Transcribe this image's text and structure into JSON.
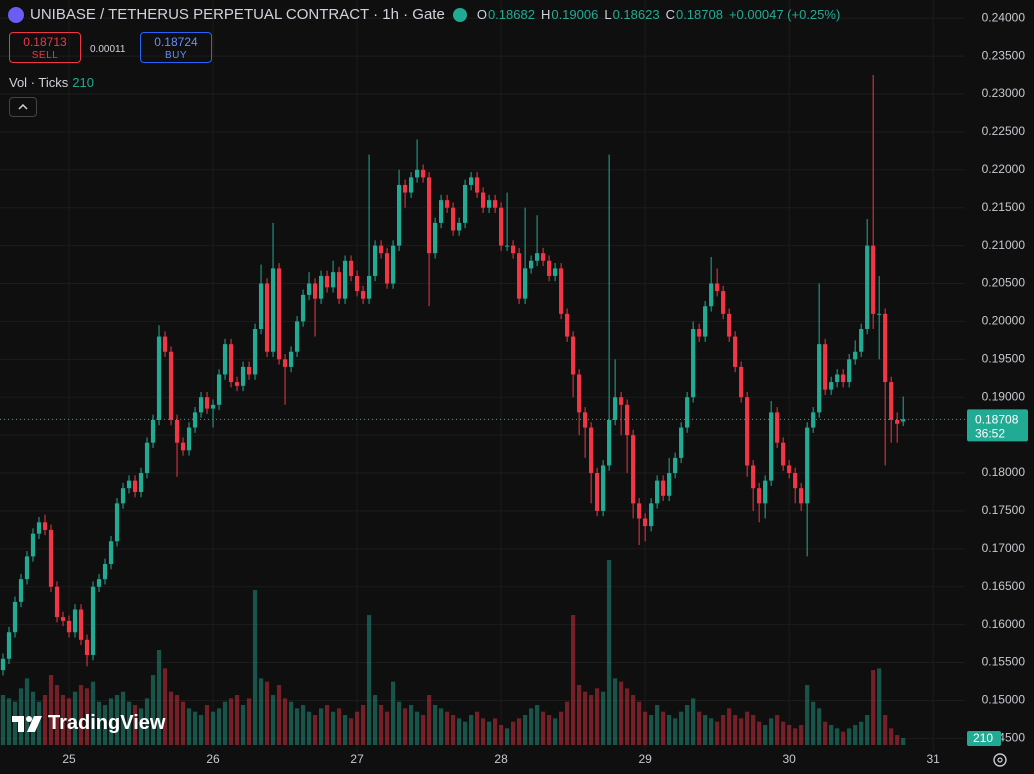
{
  "chart_data": {
    "type": "candlestick",
    "title": "UNIBASE / TETHERUS PERPETUAL CONTRACT · 1h · Gate",
    "ohlc": [
      {
        "label": "O",
        "value": 0.18682
      },
      {
        "label": "H",
        "value": 0.19006
      },
      {
        "label": "L",
        "value": 0.18623
      },
      {
        "label": "C",
        "value": 0.18708
      }
    ],
    "change": "+0.00047 (+0.25%)",
    "sell": {
      "price": 0.18713,
      "label": "SELL"
    },
    "spread": 0.00011,
    "buy": {
      "price": 0.18724,
      "label": "BUY"
    },
    "volume_label": "Vol · Ticks",
    "last_price": 0.18708,
    "countdown": "36:52",
    "logo": "TradingView",
    "up_color": "#22ab94",
    "down_color": "#f23645",
    "ylim": [
      0.1432,
      0.2424
    ],
    "yticks": [
      {
        "value": 0.145,
        "label": "0.14500"
      },
      {
        "value": 0.15,
        "label": "0.15000"
      },
      {
        "value": 0.155,
        "label": "0.15500"
      },
      {
        "value": 0.16,
        "label": "0.16000"
      },
      {
        "value": 0.165,
        "label": "0.16500"
      },
      {
        "value": 0.17,
        "label": "0.17000"
      },
      {
        "value": 0.175,
        "label": "0.17500"
      },
      {
        "value": 0.18,
        "label": "0.18000"
      },
      {
        "value": 0.185,
        "label": "0.18500"
      },
      {
        "value": 0.19,
        "label": "0.19000"
      },
      {
        "value": 0.195,
        "label": "0.19500"
      },
      {
        "value": 0.2,
        "label": "0.20000"
      },
      {
        "value": 0.205,
        "label": "0.20500"
      },
      {
        "value": 0.21,
        "label": "0.21000"
      },
      {
        "value": 0.215,
        "label": "0.21500"
      },
      {
        "value": 0.22,
        "label": "0.22000"
      },
      {
        "value": 0.225,
        "label": "0.22500"
      },
      {
        "value": 0.23,
        "label": "0.23000"
      },
      {
        "value": 0.235,
        "label": "0.23500"
      },
      {
        "value": 0.24,
        "label": "0.24000"
      }
    ],
    "xlim": [
      -0.5,
      160.3
    ],
    "xticks": [
      {
        "value": 11,
        "label": "25"
      },
      {
        "value": 35,
        "label": "26"
      },
      {
        "value": 59,
        "label": "27"
      },
      {
        "value": 83,
        "label": "28"
      },
      {
        "value": 107,
        "label": "29"
      },
      {
        "value": 131,
        "label": "30"
      },
      {
        "value": 155,
        "label": "31"
      }
    ],
    "volume_ylim": [
      0,
      22000
    ],
    "grid": true,
    "candles": [
      [
        0.154,
        0.1562,
        0.1533,
        0.1555
      ],
      [
        0.1555,
        0.1597,
        0.1548,
        0.159
      ],
      [
        0.159,
        0.1637,
        0.1583,
        0.163
      ],
      [
        0.163,
        0.1667,
        0.1623,
        0.166
      ],
      [
        0.166,
        0.1697,
        0.1653,
        0.169
      ],
      [
        0.169,
        0.1727,
        0.1683,
        0.172
      ],
      [
        0.172,
        0.1742,
        0.1713,
        0.1735
      ],
      [
        0.1735,
        0.1745,
        0.1718,
        0.1725
      ],
      [
        0.1725,
        0.1732,
        0.1643,
        0.165
      ],
      [
        0.165,
        0.1657,
        0.1603,
        0.161
      ],
      [
        0.161,
        0.1617,
        0.1598,
        0.1605
      ],
      [
        0.1605,
        0.1612,
        0.1583,
        0.159
      ],
      [
        0.159,
        0.1627,
        0.1583,
        0.162
      ],
      [
        0.162,
        0.1627,
        0.1573,
        0.158
      ],
      [
        0.158,
        0.1587,
        0.1545,
        0.156
      ],
      [
        0.156,
        0.1657,
        0.1553,
        0.165
      ],
      [
        0.165,
        0.1667,
        0.1643,
        0.166
      ],
      [
        0.166,
        0.1687,
        0.1653,
        0.168
      ],
      [
        0.168,
        0.1717,
        0.1673,
        0.171
      ],
      [
        0.171,
        0.1767,
        0.1703,
        0.176
      ],
      [
        0.176,
        0.1787,
        0.1753,
        0.178
      ],
      [
        0.178,
        0.1797,
        0.1773,
        0.179
      ],
      [
        0.179,
        0.1797,
        0.1768,
        0.1775
      ],
      [
        0.1775,
        0.1807,
        0.1768,
        0.18
      ],
      [
        0.18,
        0.1847,
        0.1793,
        0.184
      ],
      [
        0.184,
        0.1877,
        0.1833,
        0.187
      ],
      [
        0.187,
        0.1995,
        0.1863,
        0.198
      ],
      [
        0.198,
        0.1987,
        0.1953,
        0.196
      ],
      [
        0.196,
        0.1967,
        0.1863,
        0.187
      ],
      [
        0.187,
        0.1877,
        0.1795,
        0.184
      ],
      [
        0.184,
        0.1847,
        0.1823,
        0.183
      ],
      [
        0.183,
        0.1867,
        0.1823,
        0.186
      ],
      [
        0.186,
        0.1887,
        0.1853,
        0.188
      ],
      [
        0.188,
        0.1907,
        0.1873,
        0.19
      ],
      [
        0.19,
        0.1907,
        0.1878,
        0.1885
      ],
      [
        0.1885,
        0.1897,
        0.186,
        0.189
      ],
      [
        0.189,
        0.1937,
        0.1883,
        0.193
      ],
      [
        0.193,
        0.1977,
        0.1923,
        0.197
      ],
      [
        0.197,
        0.1977,
        0.1913,
        0.192
      ],
      [
        0.192,
        0.1927,
        0.1908,
        0.1915
      ],
      [
        0.1915,
        0.1947,
        0.1908,
        0.194
      ],
      [
        0.194,
        0.1947,
        0.1923,
        0.193
      ],
      [
        0.193,
        0.1997,
        0.1923,
        0.199
      ],
      [
        0.199,
        0.2075,
        0.1983,
        0.205
      ],
      [
        0.205,
        0.2057,
        0.1953,
        0.196
      ],
      [
        0.196,
        0.213,
        0.1953,
        0.207
      ],
      [
        0.207,
        0.2077,
        0.1943,
        0.195
      ],
      [
        0.195,
        0.1957,
        0.189,
        0.194
      ],
      [
        0.194,
        0.1967,
        0.1933,
        0.196
      ],
      [
        0.196,
        0.2007,
        0.1953,
        0.2
      ],
      [
        0.2,
        0.2042,
        0.1993,
        0.2035
      ],
      [
        0.2035,
        0.2065,
        0.2028,
        0.205
      ],
      [
        0.205,
        0.2057,
        0.198,
        0.203
      ],
      [
        0.203,
        0.2067,
        0.2023,
        0.206
      ],
      [
        0.206,
        0.2067,
        0.2038,
        0.2045
      ],
      [
        0.2045,
        0.208,
        0.2038,
        0.2065
      ],
      [
        0.2065,
        0.2072,
        0.2023,
        0.203
      ],
      [
        0.203,
        0.2087,
        0.2023,
        0.208
      ],
      [
        0.208,
        0.2087,
        0.2053,
        0.206
      ],
      [
        0.206,
        0.2067,
        0.2033,
        0.204
      ],
      [
        0.204,
        0.2047,
        0.2023,
        0.203
      ],
      [
        0.203,
        0.222,
        0.2023,
        0.206
      ],
      [
        0.206,
        0.2107,
        0.2053,
        0.21
      ],
      [
        0.21,
        0.2107,
        0.2083,
        0.209
      ],
      [
        0.209,
        0.2097,
        0.2043,
        0.205
      ],
      [
        0.205,
        0.2107,
        0.2043,
        0.21
      ],
      [
        0.21,
        0.22,
        0.2093,
        0.218
      ],
      [
        0.218,
        0.2187,
        0.215,
        0.217
      ],
      [
        0.217,
        0.2197,
        0.2163,
        0.219
      ],
      [
        0.219,
        0.224,
        0.2183,
        0.22
      ],
      [
        0.22,
        0.2207,
        0.2183,
        0.219
      ],
      [
        0.219,
        0.2197,
        0.202,
        0.209
      ],
      [
        0.209,
        0.2137,
        0.2083,
        0.213
      ],
      [
        0.213,
        0.2167,
        0.2123,
        0.216
      ],
      [
        0.216,
        0.2167,
        0.2143,
        0.215
      ],
      [
        0.215,
        0.2157,
        0.2113,
        0.212
      ],
      [
        0.212,
        0.2137,
        0.2113,
        0.213
      ],
      [
        0.213,
        0.2187,
        0.2123,
        0.218
      ],
      [
        0.218,
        0.2197,
        0.2173,
        0.219
      ],
      [
        0.219,
        0.2197,
        0.2163,
        0.217
      ],
      [
        0.217,
        0.2177,
        0.2143,
        0.215
      ],
      [
        0.215,
        0.2167,
        0.2143,
        0.216
      ],
      [
        0.216,
        0.2167,
        0.2143,
        0.215
      ],
      [
        0.215,
        0.2157,
        0.2093,
        0.21
      ],
      [
        0.21,
        0.217,
        0.2093,
        0.21
      ],
      [
        0.21,
        0.2107,
        0.2083,
        0.209
      ],
      [
        0.209,
        0.2097,
        0.2023,
        0.203
      ],
      [
        0.203,
        0.215,
        0.2023,
        0.207
      ],
      [
        0.207,
        0.2087,
        0.2063,
        0.208
      ],
      [
        0.208,
        0.214,
        0.2073,
        0.209
      ],
      [
        0.209,
        0.2097,
        0.2073,
        0.208
      ],
      [
        0.208,
        0.2087,
        0.2053,
        0.206
      ],
      [
        0.206,
        0.2077,
        0.2053,
        0.207
      ],
      [
        0.207,
        0.2077,
        0.2003,
        0.201
      ],
      [
        0.201,
        0.2017,
        0.1973,
        0.198
      ],
      [
        0.198,
        0.1987,
        0.19,
        0.193
      ],
      [
        0.193,
        0.1937,
        0.185,
        0.188
      ],
      [
        0.188,
        0.1887,
        0.182,
        0.186
      ],
      [
        0.186,
        0.1867,
        0.176,
        0.18
      ],
      [
        0.18,
        0.1807,
        0.1743,
        0.175
      ],
      [
        0.175,
        0.1817,
        0.1743,
        0.181
      ],
      [
        0.181,
        0.222,
        0.1803,
        0.187
      ],
      [
        0.187,
        0.195,
        0.1863,
        0.19
      ],
      [
        0.19,
        0.1907,
        0.185,
        0.189
      ],
      [
        0.189,
        0.1897,
        0.18,
        0.185
      ],
      [
        0.185,
        0.1857,
        0.174,
        0.176
      ],
      [
        0.176,
        0.1767,
        0.1705,
        0.174
      ],
      [
        0.174,
        0.1747,
        0.171,
        0.173
      ],
      [
        0.173,
        0.1767,
        0.1723,
        0.176
      ],
      [
        0.176,
        0.1797,
        0.1753,
        0.179
      ],
      [
        0.179,
        0.1797,
        0.1763,
        0.177
      ],
      [
        0.177,
        0.182,
        0.1763,
        0.18
      ],
      [
        0.18,
        0.1827,
        0.1793,
        0.182
      ],
      [
        0.182,
        0.1867,
        0.1813,
        0.186
      ],
      [
        0.186,
        0.1907,
        0.1853,
        0.19
      ],
      [
        0.19,
        0.2,
        0.1893,
        0.199
      ],
      [
        0.199,
        0.1997,
        0.1973,
        0.198
      ],
      [
        0.198,
        0.2027,
        0.1973,
        0.202
      ],
      [
        0.202,
        0.2085,
        0.2013,
        0.205
      ],
      [
        0.205,
        0.207,
        0.2033,
        0.204
      ],
      [
        0.204,
        0.2047,
        0.2003,
        0.201
      ],
      [
        0.201,
        0.2017,
        0.1973,
        0.198
      ],
      [
        0.198,
        0.1987,
        0.1933,
        0.194
      ],
      [
        0.194,
        0.1947,
        0.1893,
        0.19
      ],
      [
        0.19,
        0.1907,
        0.1795,
        0.181
      ],
      [
        0.181,
        0.1817,
        0.175,
        0.178
      ],
      [
        0.178,
        0.1787,
        0.1735,
        0.176
      ],
      [
        0.176,
        0.1797,
        0.174,
        0.179
      ],
      [
        0.179,
        0.1895,
        0.1783,
        0.188
      ],
      [
        0.188,
        0.1887,
        0.1833,
        0.184
      ],
      [
        0.184,
        0.1847,
        0.1803,
        0.181
      ],
      [
        0.181,
        0.1817,
        0.1793,
        0.18
      ],
      [
        0.18,
        0.1807,
        0.176,
        0.178
      ],
      [
        0.178,
        0.1787,
        0.175,
        0.176
      ],
      [
        0.176,
        0.1867,
        0.169,
        0.186
      ],
      [
        0.186,
        0.1887,
        0.1853,
        0.188
      ],
      [
        0.188,
        0.205,
        0.1873,
        0.197
      ],
      [
        0.197,
        0.1977,
        0.1903,
        0.191
      ],
      [
        0.191,
        0.1927,
        0.1903,
        0.192
      ],
      [
        0.192,
        0.1937,
        0.1913,
        0.193
      ],
      [
        0.193,
        0.1937,
        0.1913,
        0.192
      ],
      [
        0.192,
        0.1957,
        0.1913,
        0.195
      ],
      [
        0.195,
        0.1975,
        0.1943,
        0.196
      ],
      [
        0.196,
        0.1997,
        0.1953,
        0.199
      ],
      [
        0.199,
        0.2135,
        0.1983,
        0.21
      ],
      [
        0.21,
        0.2325,
        0.199,
        0.201
      ],
      [
        0.201,
        0.206,
        0.195,
        0.201
      ],
      [
        0.201,
        0.2017,
        0.181,
        0.192
      ],
      [
        0.192,
        0.1927,
        0.184,
        0.187
      ],
      [
        0.187,
        0.188,
        0.184,
        0.1865
      ],
      [
        0.1868,
        0.1901,
        0.1862,
        0.1871
      ]
    ],
    "volumes": [
      1500,
      1400,
      1300,
      1700,
      2000,
      1600,
      1300,
      1500,
      2100,
      1800,
      1500,
      1400,
      1600,
      1800,
      1700,
      1900,
      1300,
      1200,
      1400,
      1500,
      1600,
      1300,
      1200,
      1100,
      1400,
      2100,
      2850,
      2300,
      1600,
      1500,
      1300,
      1100,
      1000,
      900,
      1200,
      1000,
      1100,
      1300,
      1400,
      1500,
      1200,
      1400,
      4650,
      2000,
      1900,
      1500,
      1800,
      1400,
      1300,
      1100,
      1200,
      1000,
      900,
      1100,
      1200,
      1000,
      1100,
      900,
      800,
      1000,
      1200,
      3900,
      1500,
      1200,
      1000,
      1900,
      1300,
      1100,
      1200,
      1000,
      900,
      1500,
      1200,
      1100,
      1000,
      900,
      800,
      700,
      900,
      1000,
      800,
      700,
      800,
      600,
      500,
      700,
      800,
      900,
      1100,
      1200,
      1000,
      900,
      800,
      1000,
      1300,
      3900,
      1800,
      1600,
      1500,
      1700,
      1600,
      5550,
      2000,
      1900,
      1700,
      1500,
      1300,
      1000,
      900,
      1200,
      1000,
      900,
      800,
      1000,
      1200,
      1400,
      1000,
      900,
      800,
      700,
      900,
      1100,
      900,
      800,
      1000,
      900,
      700,
      600,
      800,
      900,
      700,
      600,
      500,
      600,
      1800,
      1300,
      1100,
      700,
      600,
      500,
      400,
      500,
      600,
      700,
      900,
      2250,
      2300,
      900,
      500,
      300,
      210
    ]
  }
}
